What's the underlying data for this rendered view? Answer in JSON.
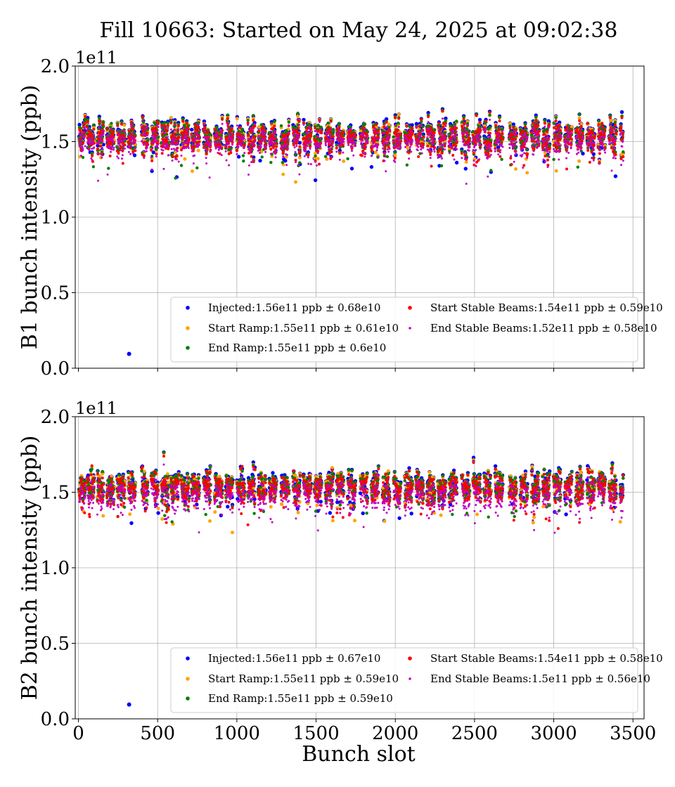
{
  "chart_data": {
    "type": "scatter",
    "title": "Fill 10663: Started on May 24, 2025 at 09:02:38",
    "xlabel": "Bunch slot",
    "xlim": [
      -20,
      3570
    ],
    "x_ticks": [
      0,
      500,
      1000,
      1500,
      2000,
      2500,
      3000,
      3500
    ],
    "y_exponent": "1e11",
    "ylim": [
      0,
      2.0
    ],
    "y_ticks": [
      "0.0",
      "0.5",
      "1.0",
      "1.5",
      "2.0"
    ],
    "grid": true,
    "legend_location": "lower-right",
    "colors": {
      "injected": "#0000ff",
      "start_ramp": "#ffa500",
      "end_ramp": "#008000",
      "start_stable": "#ff0000",
      "end_stable": "#c000c0"
    },
    "trains": [
      [
        5,
        40
      ],
      [
        55,
        45
      ],
      [
        120,
        40
      ],
      [
        180,
        45
      ],
      [
        245,
        50
      ],
      [
        315,
        45
      ],
      [
        400,
        40
      ],
      [
        460,
        45
      ],
      [
        525,
        45
      ],
      [
        585,
        50
      ],
      [
        650,
        50
      ],
      [
        715,
        50
      ],
      [
        790,
        45
      ],
      [
        860,
        50
      ],
      [
        930,
        45
      ],
      [
        1000,
        50
      ],
      [
        1070,
        45
      ],
      [
        1135,
        50
      ],
      [
        1205,
        45
      ],
      [
        1280,
        50
      ],
      [
        1355,
        45
      ],
      [
        1420,
        50
      ],
      [
        1490,
        45
      ],
      [
        1560,
        50
      ],
      [
        1630,
        45
      ],
      [
        1700,
        50
      ],
      [
        1780,
        45
      ],
      [
        1850,
        45
      ],
      [
        1920,
        45
      ],
      [
        1990,
        45
      ],
      [
        2060,
        50
      ],
      [
        2130,
        50
      ],
      [
        2200,
        50
      ],
      [
        2270,
        50
      ],
      [
        2340,
        50
      ],
      [
        2420,
        50
      ],
      [
        2490,
        50
      ],
      [
        2560,
        45
      ],
      [
        2630,
        50
      ],
      [
        2720,
        45
      ],
      [
        2790,
        45
      ],
      [
        2860,
        50
      ],
      [
        2930,
        45
      ],
      [
        3000,
        45
      ],
      [
        3070,
        45
      ],
      [
        3140,
        45
      ],
      [
        3210,
        50
      ],
      [
        3280,
        45
      ],
      [
        3350,
        45
      ],
      [
        3420,
        20
      ]
    ],
    "panels": [
      {
        "ylabel": "B1 bunch intensity (ppb)",
        "outlier": {
          "x": 320,
          "y": 0.095,
          "series": "Injected"
        },
        "series": [
          {
            "key": "injected",
            "name": "Injected:1.56e11 ppb ± 0.68e10",
            "mean": 1.56,
            "std": 0.068
          },
          {
            "key": "start_ramp",
            "name": "Start Ramp:1.55e11 ppb ± 0.61e10",
            "mean": 1.55,
            "std": 0.061
          },
          {
            "key": "end_ramp",
            "name": "End Ramp:1.55e11 ppb ± 0.6e10",
            "mean": 1.55,
            "std": 0.06
          },
          {
            "key": "start_stable",
            "name": "Start Stable Beams:1.54e11 ppb ± 0.59e10",
            "mean": 1.54,
            "std": 0.059
          },
          {
            "key": "end_stable",
            "name": "End Stable Beams:1.52e11 ppb ± 0.58e10",
            "mean": 1.52,
            "std": 0.058
          }
        ]
      },
      {
        "ylabel": "B2 bunch intensity (ppb)",
        "outlier": {
          "x": 320,
          "y": 0.095,
          "series": "Injected"
        },
        "series": [
          {
            "key": "injected",
            "name": "Injected:1.56e11 ppb ± 0.67e10",
            "mean": 1.56,
            "std": 0.067
          },
          {
            "key": "start_ramp",
            "name": "Start Ramp:1.55e11 ppb ± 0.59e10",
            "mean": 1.55,
            "std": 0.059
          },
          {
            "key": "end_ramp",
            "name": "End Ramp:1.55e11 ppb ± 0.59e10",
            "mean": 1.55,
            "std": 0.059
          },
          {
            "key": "start_stable",
            "name": "Start Stable Beams:1.54e11 ppb ± 0.58e10",
            "mean": 1.54,
            "std": 0.058
          },
          {
            "key": "end_stable",
            "name": "End Stable Beams:1.5e11 ppb ± 0.56e10",
            "mean": 1.5,
            "std": 0.056
          }
        ]
      }
    ]
  }
}
